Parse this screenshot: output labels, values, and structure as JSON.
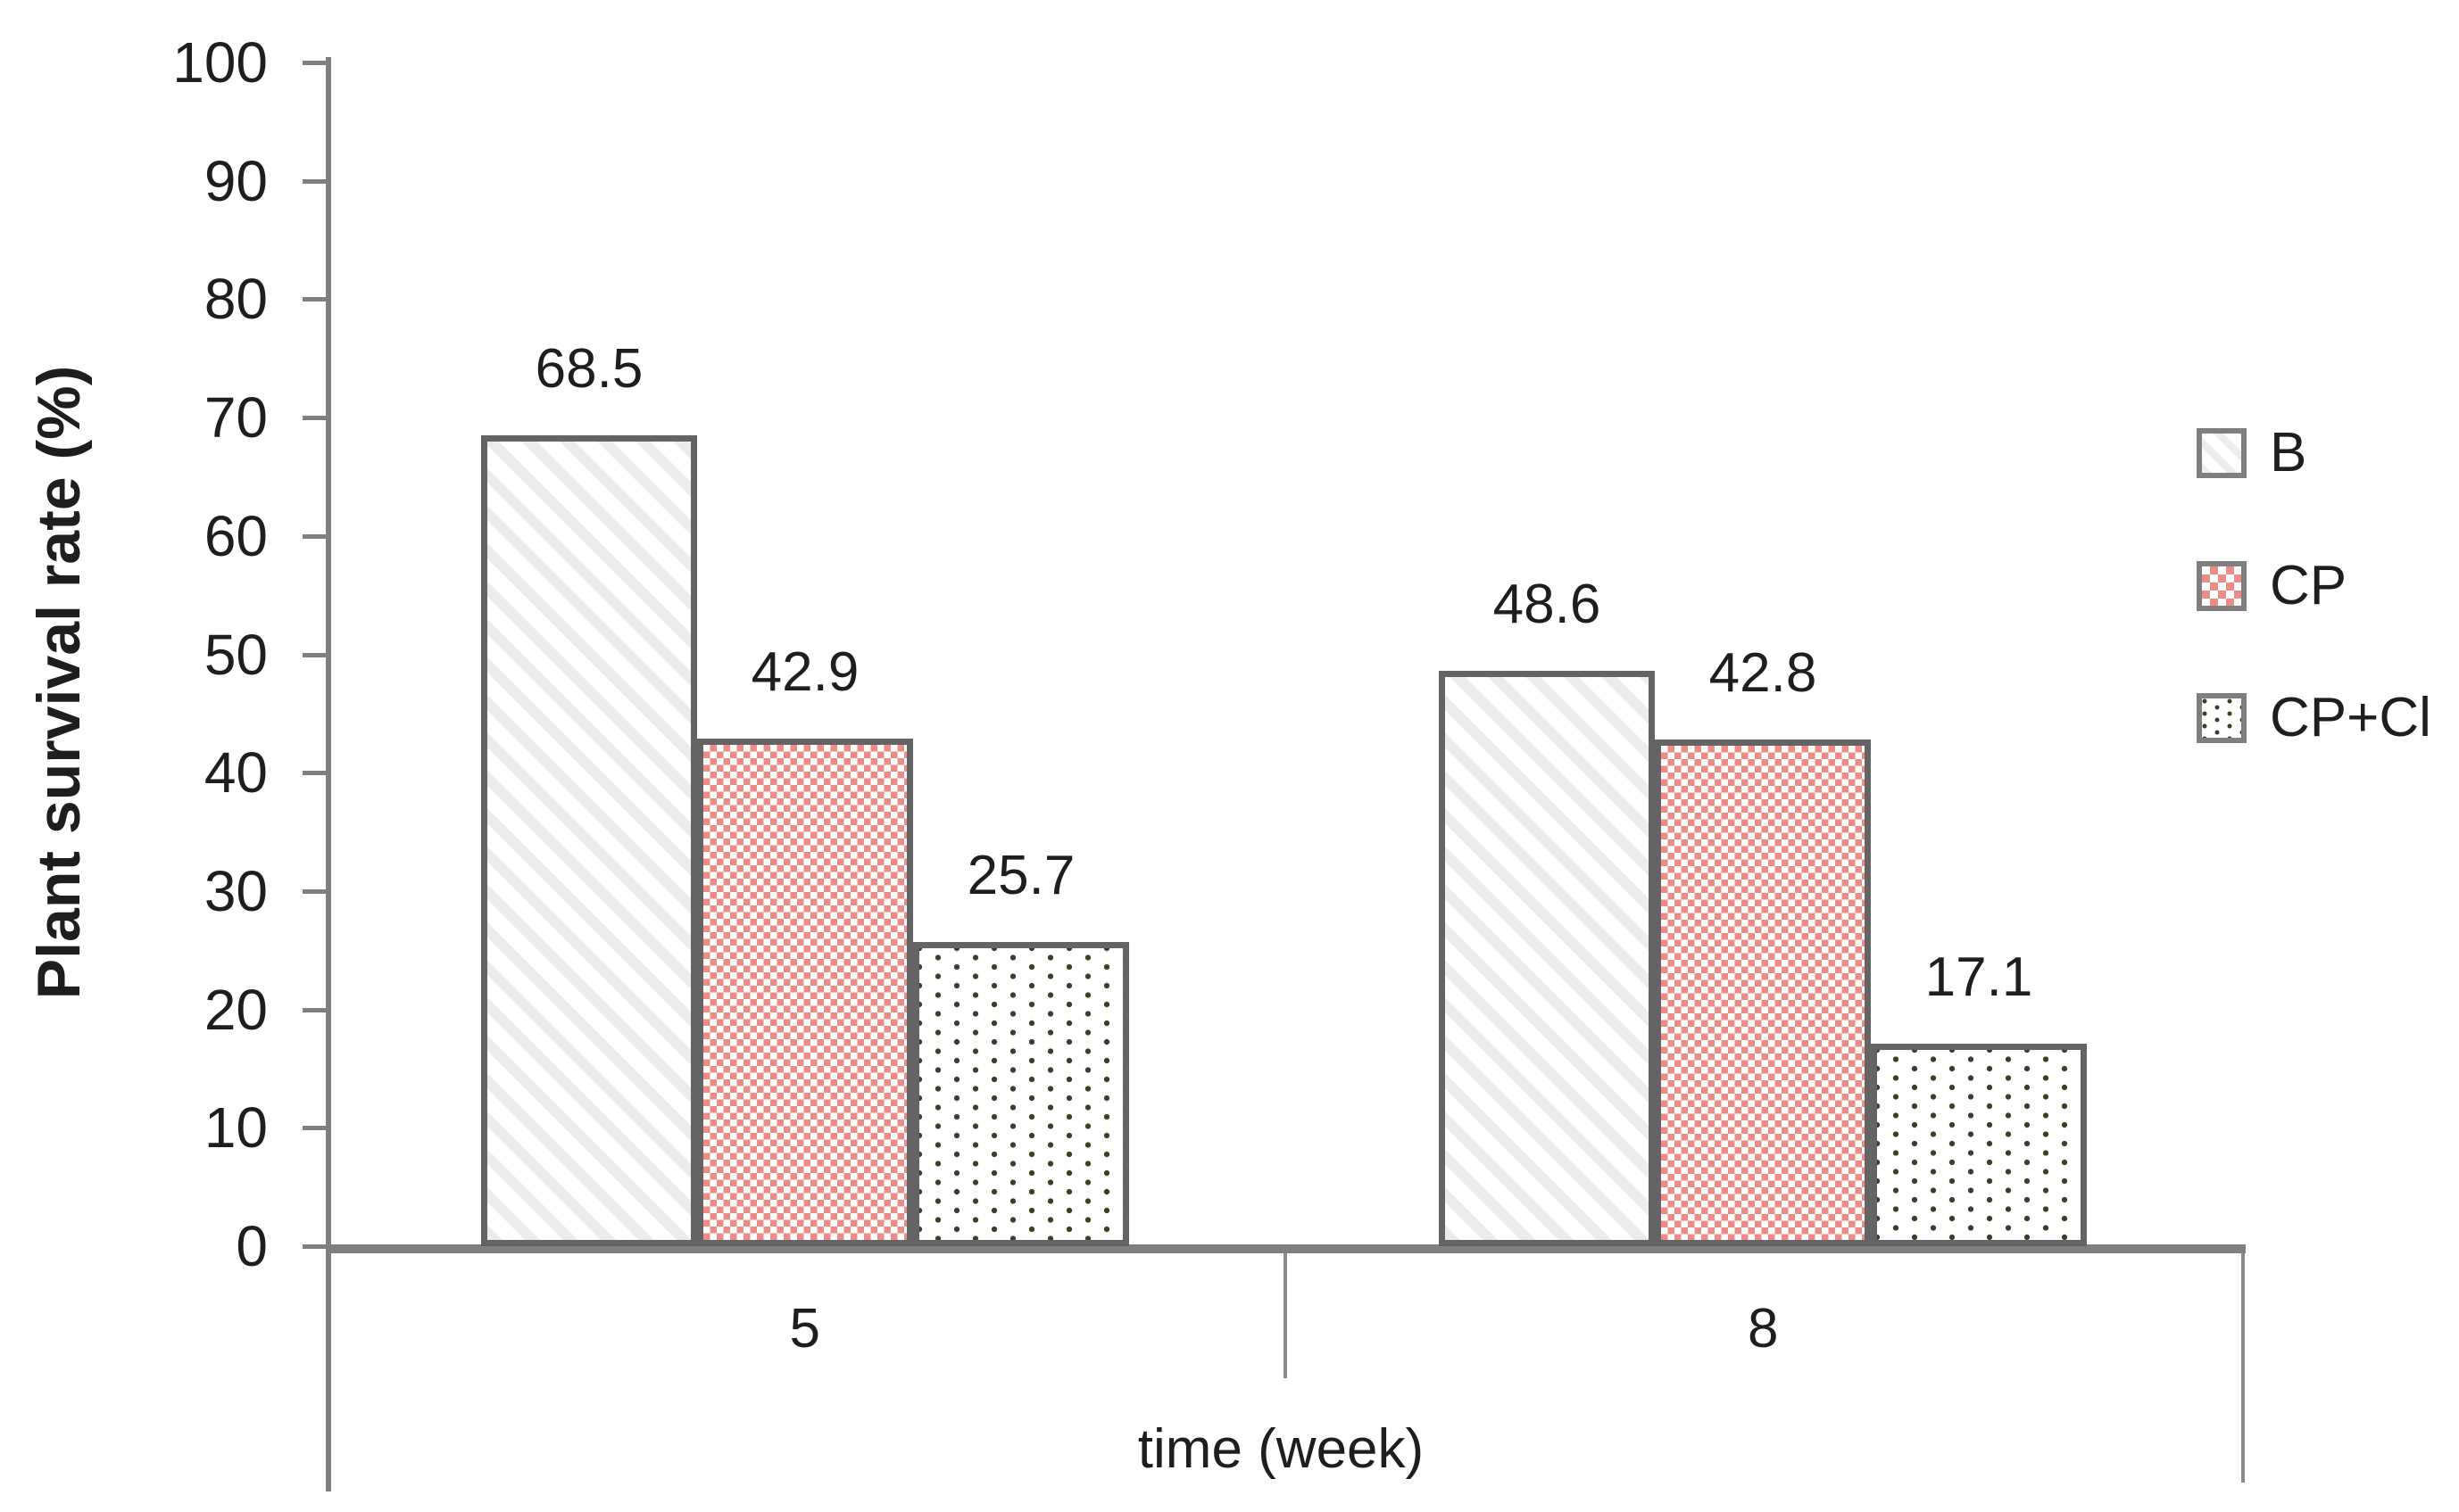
{
  "chart_data": {
    "type": "bar",
    "title": "",
    "xlabel": "time (week)",
    "ylabel": "Plant survival rate (%)",
    "categories": [
      "5",
      "8"
    ],
    "series": [
      {
        "name": "B",
        "pattern": "light-diagonal-stripes",
        "values": [
          68.5,
          48.6
        ]
      },
      {
        "name": "CP",
        "pattern": "pink-checkerboard",
        "values": [
          42.9,
          42.8
        ]
      },
      {
        "name": "CP+Cl",
        "pattern": "dark-dots",
        "values": [
          25.7,
          17.1
        ]
      }
    ],
    "ylim": [
      0,
      100
    ],
    "yticks": [
      0,
      10,
      20,
      30,
      40,
      50,
      60,
      70,
      80,
      90,
      100
    ],
    "value_label_decimals": 1,
    "grid": false,
    "legend_position": "right"
  },
  "colors": {
    "stripe_fill": "#ececec",
    "checker_fill": "#ed8c86",
    "dot_fill": "#3d3d28",
    "bar_border": "#646464",
    "axis_line": "#7f7f7f",
    "text": "#1e1e1e"
  }
}
